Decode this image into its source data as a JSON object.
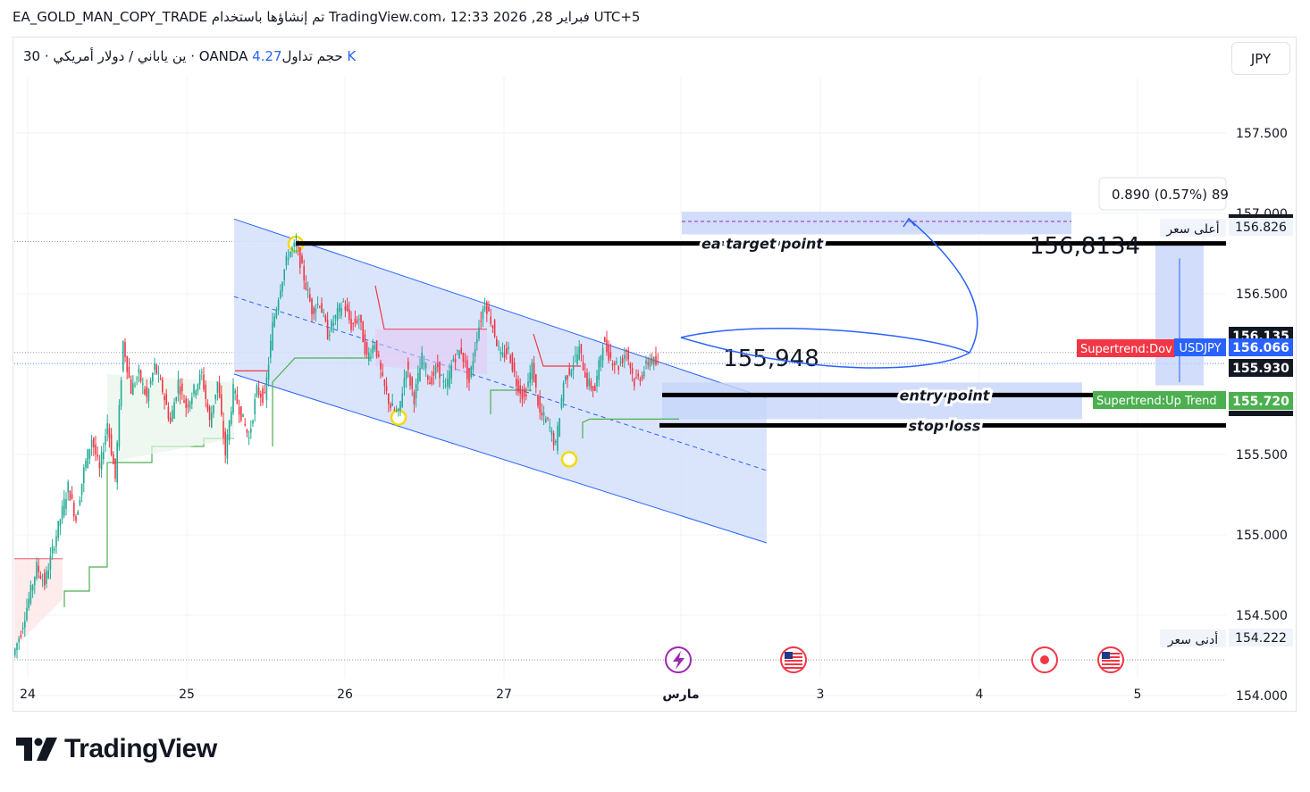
{
  "header": {
    "publisher_line": "EA_GOLD_MAN_COPY_TRADE تم إنشاؤها باستخدام TradingView.com، 12:33 2026 ,28 فبراير UTC+5",
    "symbol_desc": "30 · ين ياباني / دولار أمريكي · OANDA  حجم تداول",
    "volume": "4.27 K",
    "currency_button": "JPY"
  },
  "colors": {
    "up": "#22ab94",
    "down": "#f23645",
    "channel_fill": "#d4e0fb",
    "channel_line": "#2962ff",
    "supertrend_up": "#4caf50",
    "supertrend_down": "#f23645",
    "label_dark": "#131722",
    "accent_blue": "#2962ff"
  },
  "chart_data": {
    "type": "candlestick",
    "symbol": "USDJPY",
    "ylim": [
      153.9,
      157.85
    ],
    "x_ticks": [
      "24",
      "25",
      "26",
      "27",
      "مارس",
      "3",
      "4",
      "5"
    ],
    "y_ticks": [
      "157.500",
      "157.000",
      "156.500",
      "155.500",
      "155.000",
      "154.500",
      "154.000"
    ],
    "price_path": [
      [
        0,
        154.25
      ],
      [
        4,
        154.4
      ],
      [
        8,
        154.6
      ],
      [
        12,
        154.8
      ],
      [
        16,
        154.7
      ],
      [
        20,
        154.9
      ],
      [
        24,
        155.1
      ],
      [
        28,
        155.3
      ],
      [
        32,
        155.1
      ],
      [
        36,
        155.4
      ],
      [
        40,
        155.6
      ],
      [
        44,
        155.4
      ],
      [
        48,
        155.7
      ],
      [
        52,
        155.35
      ],
      [
        56,
        156.2
      ],
      [
        60,
        155.9
      ],
      [
        64,
        156.0
      ],
      [
        68,
        155.85
      ],
      [
        72,
        156.05
      ],
      [
        76,
        155.9
      ],
      [
        80,
        155.7
      ],
      [
        84,
        155.95
      ],
      [
        88,
        155.8
      ],
      [
        92,
        155.9
      ],
      [
        96,
        156.0
      ],
      [
        100,
        155.7
      ],
      [
        104,
        155.95
      ],
      [
        108,
        155.5
      ],
      [
        112,
        155.9
      ],
      [
        116,
        155.75
      ],
      [
        120,
        155.6
      ],
      [
        124,
        155.9
      ],
      [
        128,
        155.85
      ],
      [
        132,
        156.3
      ],
      [
        136,
        156.55
      ],
      [
        140,
        156.75
      ],
      [
        144,
        156.8
      ],
      [
        148,
        156.6
      ],
      [
        152,
        156.4
      ],
      [
        156,
        156.45
      ],
      [
        160,
        156.25
      ],
      [
        164,
        156.35
      ],
      [
        168,
        156.45
      ],
      [
        172,
        156.3
      ],
      [
        176,
        156.35
      ],
      [
        180,
        156.1
      ],
      [
        184,
        156.2
      ],
      [
        188,
        155.95
      ],
      [
        192,
        155.8
      ],
      [
        196,
        155.75
      ],
      [
        200,
        156.05
      ],
      [
        204,
        155.85
      ],
      [
        208,
        156.1
      ],
      [
        212,
        155.95
      ],
      [
        216,
        156.05
      ],
      [
        220,
        155.9
      ],
      [
        224,
        156.1
      ],
      [
        228,
        156.15
      ],
      [
        232,
        155.95
      ],
      [
        236,
        156.25
      ],
      [
        240,
        156.45
      ],
      [
        244,
        156.3
      ],
      [
        248,
        156.1
      ],
      [
        252,
        156.15
      ],
      [
        256,
        155.95
      ],
      [
        260,
        155.85
      ],
      [
        264,
        156.05
      ],
      [
        268,
        155.75
      ],
      [
        272,
        155.7
      ],
      [
        276,
        155.55
      ],
      [
        280,
        155.95
      ],
      [
        284,
        156.05
      ],
      [
        288,
        156.15
      ],
      [
        292,
        155.95
      ],
      [
        296,
        155.9
      ],
      [
        300,
        156.2
      ],
      [
        304,
        156.1
      ],
      [
        308,
        156.05
      ],
      [
        312,
        156.15
      ],
      [
        316,
        155.95
      ],
      [
        320,
        156.0
      ],
      [
        324,
        156.1
      ],
      [
        328,
        156.05
      ]
    ],
    "levels": {
      "ea_target": 156.8134,
      "entry": 155.948,
      "stop_loss": 155.72,
      "session_high": 156.826,
      "session_low": 154.222
    },
    "annotations": {
      "target_label": "ea target point",
      "entry_label": "entry point",
      "stop_label": "stop loss",
      "target_value": "156,8134",
      "entry_value": "155,948"
    },
    "axis_labels": [
      {
        "text": "156.826",
        "style": "plain"
      },
      {
        "text": "156.135",
        "style": "dark"
      },
      {
        "text": "156.066",
        "style": "blue"
      },
      {
        "text": "155.930",
        "style": "dark"
      },
      {
        "text": "155.720",
        "style": "green"
      },
      {
        "text": "154.222",
        "style": "plain"
      }
    ],
    "tags": {
      "supertrend_down": "Supertrend:Dov",
      "symbol": "USDJPY",
      "supertrend_up": "Supertrend:Up Trend",
      "high_label": "أعلى سعر",
      "low_label": "أدنى سعر",
      "measure": "0.890 (0.57%) 89"
    },
    "legend": "none",
    "grid": true
  },
  "footer": {
    "brand": "TradingView"
  }
}
